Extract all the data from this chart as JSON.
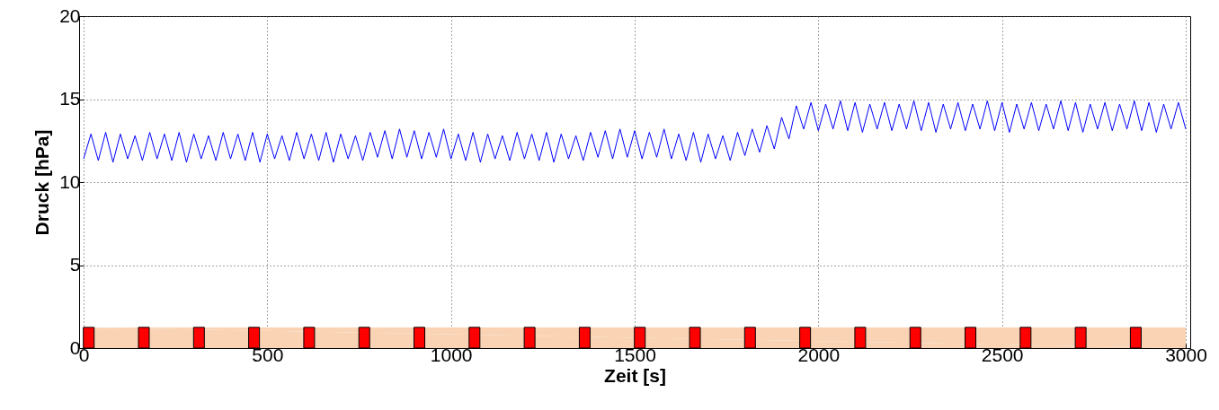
{
  "chart_data": {
    "type": "line",
    "xlabel": "Zeit [s]",
    "ylabel": "Druck [hPa]",
    "xlim": [
      0,
      3000
    ],
    "ylim": [
      0,
      20
    ],
    "xticks": [
      0,
      500,
      1000,
      1500,
      2000,
      2500,
      3000
    ],
    "yticks": [
      0,
      5,
      10,
      15,
      20
    ],
    "grid": true,
    "marker": "none",
    "line_style": "solid",
    "series": [
      {
        "type": "area",
        "color": "#f9d3b4",
        "x": [
          0,
          3000
        ],
        "values": [
          1.25,
          1.25
        ]
      },
      {
        "type": "bar",
        "color": "#ff0000",
        "x": [
          14,
          164,
          314,
          464,
          614,
          764,
          914,
          1064,
          1214,
          1364,
          1514,
          1664,
          1814,
          1964,
          2114,
          2264,
          2414,
          2564,
          2714,
          2864
        ],
        "values": [
          1.25,
          1.25,
          1.25,
          1.25,
          1.25,
          1.25,
          1.25,
          1.25,
          1.25,
          1.25,
          1.25,
          1.25,
          1.25,
          1.25,
          1.25,
          1.25,
          1.25,
          1.25,
          1.25,
          1.25
        ]
      },
      {
        "color": "#0000ff",
        "x": [
          0,
          20,
          40,
          60,
          80,
          100,
          120,
          140,
          160,
          180,
          200,
          220,
          240,
          260,
          280,
          300,
          320,
          340,
          360,
          380,
          400,
          420,
          440,
          460,
          480,
          500,
          520,
          540,
          560,
          580,
          600,
          620,
          640,
          660,
          680,
          700,
          720,
          740,
          760,
          780,
          800,
          820,
          840,
          860,
          880,
          900,
          920,
          940,
          960,
          980,
          1000,
          1020,
          1040,
          1060,
          1080,
          1100,
          1120,
          1140,
          1160,
          1180,
          1200,
          1220,
          1240,
          1260,
          1280,
          1300,
          1320,
          1340,
          1360,
          1380,
          1400,
          1420,
          1440,
          1460,
          1480,
          1500,
          1520,
          1540,
          1560,
          1580,
          1600,
          1620,
          1640,
          1660,
          1680,
          1700,
          1720,
          1740,
          1760,
          1780,
          1800,
          1820,
          1840,
          1860,
          1880,
          1900,
          1920,
          1940,
          1960,
          1980,
          2000,
          2020,
          2040,
          2060,
          2080,
          2100,
          2120,
          2140,
          2160,
          2180,
          2200,
          2220,
          2240,
          2260,
          2280,
          2300,
          2320,
          2340,
          2360,
          2380,
          2400,
          2420,
          2440,
          2460,
          2480,
          2500,
          2520,
          2540,
          2560,
          2580,
          2600,
          2620,
          2640,
          2660,
          2680,
          2700,
          2720,
          2740,
          2760,
          2780,
          2800,
          2820,
          2840,
          2860,
          2880,
          2900,
          2920,
          2940,
          2960,
          2980,
          3000
        ],
        "values": [
          11.4,
          12.9,
          11.3,
          13.0,
          11.2,
          12.9,
          11.4,
          12.8,
          11.3,
          13.0,
          11.4,
          12.9,
          11.3,
          13.0,
          11.2,
          12.9,
          11.4,
          12.8,
          11.3,
          13.0,
          11.4,
          12.9,
          11.3,
          13.0,
          11.2,
          12.9,
          11.4,
          12.8,
          11.3,
          13.0,
          11.4,
          12.9,
          11.3,
          13.0,
          11.2,
          12.9,
          11.4,
          12.8,
          11.3,
          13.0,
          11.5,
          13.1,
          11.4,
          13.2,
          11.5,
          13.1,
          11.4,
          13.0,
          11.5,
          13.2,
          11.4,
          12.9,
          11.3,
          13.0,
          11.2,
          12.9,
          11.4,
          12.8,
          11.3,
          13.0,
          11.4,
          12.9,
          11.3,
          13.0,
          11.2,
          12.9,
          11.4,
          12.8,
          11.3,
          13.0,
          11.5,
          13.1,
          11.4,
          13.2,
          11.5,
          13.1,
          11.4,
          13.0,
          11.5,
          13.2,
          11.4,
          12.9,
          11.3,
          13.0,
          11.2,
          12.9,
          11.4,
          12.8,
          11.3,
          13.0,
          11.6,
          13.2,
          11.8,
          13.4,
          12.0,
          13.9,
          12.6,
          14.6,
          13.2,
          14.8,
          13.1,
          14.7,
          13.2,
          14.9,
          13.1,
          14.8,
          13.0,
          14.7,
          13.2,
          14.8,
          13.1,
          14.7,
          13.2,
          14.9,
          13.1,
          14.8,
          13.0,
          14.7,
          13.2,
          14.8,
          13.1,
          14.7,
          13.2,
          14.9,
          13.1,
          14.8,
          13.0,
          14.7,
          13.2,
          14.8,
          13.1,
          14.7,
          13.2,
          14.9,
          13.1,
          14.8,
          13.0,
          14.7,
          13.2,
          14.8,
          13.1,
          14.7,
          13.2,
          14.9,
          13.1,
          14.8,
          13.0,
          14.7,
          13.2,
          14.8,
          13.2
        ]
      }
    ]
  }
}
